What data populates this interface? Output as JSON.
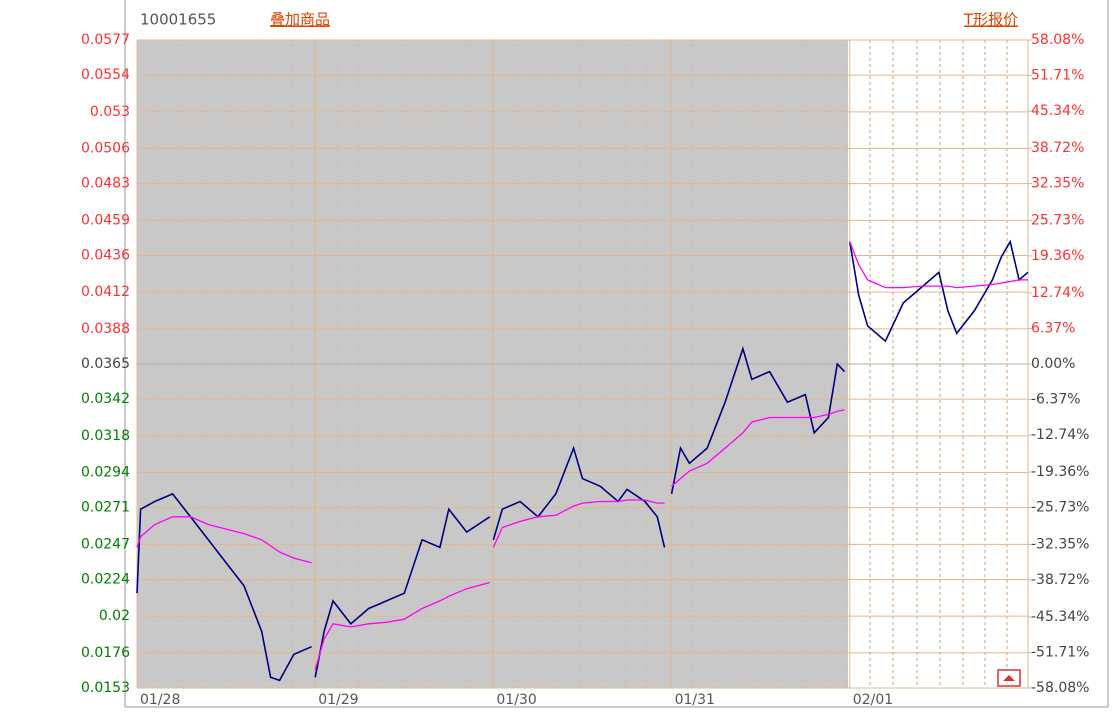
{
  "chart_data": {
    "type": "line",
    "code": "10001655",
    "overlay_link": "叠加商品",
    "quote_link": "T形报价",
    "xlim": [
      0,
      5
    ],
    "xticks": [
      {
        "value": 0,
        "label": "01/28"
      },
      {
        "value": 1,
        "label": "01/29"
      },
      {
        "value": 2,
        "label": "01/30"
      },
      {
        "value": 3,
        "label": "01/31"
      },
      {
        "value": 4,
        "label": "02/01"
      }
    ],
    "ylim": [
      0.0153,
      0.0577
    ],
    "yticks": [
      0.0153,
      0.0176,
      0.02,
      0.0224,
      0.0247,
      0.0271,
      0.0294,
      0.0318,
      0.0342,
      0.0365,
      0.0388,
      0.0412,
      0.0436,
      0.0459,
      0.0483,
      0.0506,
      0.053,
      0.0554,
      0.0577
    ],
    "y2lim": [
      -58.08,
      58.08
    ],
    "y2ticks": [
      {
        "value": -58.08,
        "label": "-58.08%"
      },
      {
        "value": -51.71,
        "label": "-51.71%"
      },
      {
        "value": -45.34,
        "label": "-45.34%"
      },
      {
        "value": -38.72,
        "label": "-38.72%"
      },
      {
        "value": -32.35,
        "label": "-32.35%"
      },
      {
        "value": -25.73,
        "label": "-25.73%"
      },
      {
        "value": -19.36,
        "label": "-19.36%"
      },
      {
        "value": -12.74,
        "label": "-12.74%"
      },
      {
        "value": -6.37,
        "label": "-6.37%"
      },
      {
        "value": 0,
        "label": "0.00%"
      },
      {
        "value": 6.37,
        "label": "6.37%"
      },
      {
        "value": 12.74,
        "label": "12.74%"
      },
      {
        "value": 19.36,
        "label": "19.36%"
      },
      {
        "value": 25.73,
        "label": "25.73%"
      },
      {
        "value": 32.35,
        "label": "32.35%"
      },
      {
        "value": 38.72,
        "label": "38.72%"
      },
      {
        "value": 45.34,
        "label": "45.34%"
      },
      {
        "value": 51.71,
        "label": "51.71%"
      },
      {
        "value": 58.08,
        "label": "58.08%"
      }
    ],
    "grid": true,
    "x": [
      0,
      0.02,
      0.1,
      0.2,
      0.3,
      0.4,
      0.5,
      0.6,
      0.7,
      0.75,
      0.8,
      0.88,
      0.98,
      0.99,
      1.0,
      1.05,
      1.1,
      1.2,
      1.3,
      1.4,
      1.5,
      1.6,
      1.7,
      1.75,
      1.85,
      1.98,
      1.99,
      2.0,
      2.05,
      2.15,
      2.25,
      2.35,
      2.45,
      2.5,
      2.6,
      2.7,
      2.75,
      2.85,
      2.92,
      2.96,
      2.98,
      3.0,
      3.05,
      3.1,
      3.2,
      3.3,
      3.4,
      3.45,
      3.55,
      3.65,
      3.75,
      3.8,
      3.88,
      3.93,
      3.97,
      3.98,
      4.0,
      4.05,
      4.1,
      4.2,
      4.3,
      4.4,
      4.5,
      4.55,
      4.6,
      4.7,
      4.8,
      4.85,
      4.9,
      4.95,
      5.0
    ],
    "series": [
      {
        "color": "#000080",
        "values": [
          0.0215,
          0.027,
          0.0275,
          0.028,
          0.0265,
          0.025,
          0.0235,
          0.022,
          0.019,
          0.016,
          0.0158,
          0.0175,
          0.018,
          null,
          0.016,
          0.019,
          0.021,
          0.0195,
          0.0205,
          0.021,
          0.0215,
          0.025,
          0.0245,
          0.027,
          0.0255,
          0.0265,
          null,
          0.025,
          0.027,
          0.0275,
          0.0265,
          0.028,
          0.031,
          0.029,
          0.0285,
          0.0275,
          0.0283,
          0.0275,
          0.0265,
          0.0245,
          null,
          0.028,
          0.031,
          0.03,
          0.031,
          0.034,
          0.0375,
          0.0355,
          0.036,
          0.034,
          0.0345,
          0.032,
          0.033,
          0.0365,
          0.036,
          null,
          0.0445,
          0.041,
          0.039,
          0.038,
          0.0405,
          0.0415,
          0.0425,
          0.04,
          0.0385,
          0.04,
          0.042,
          0.0435,
          0.0445,
          0.042,
          0.0425
        ]
      },
      {
        "color": "#ff00ff",
        "values": [
          0.0245,
          0.0252,
          0.026,
          0.0265,
          0.0265,
          0.026,
          0.0257,
          0.0254,
          0.025,
          0.0246,
          0.0242,
          0.0238,
          0.0235,
          null,
          0.0165,
          0.0185,
          0.0195,
          0.0193,
          0.0195,
          0.0196,
          0.0198,
          0.0205,
          0.021,
          0.0213,
          0.0218,
          0.0222,
          null,
          0.0245,
          0.0258,
          0.0262,
          0.0265,
          0.0266,
          0.0272,
          0.0274,
          0.0275,
          0.0275,
          0.0276,
          0.0276,
          0.0274,
          0.0274,
          null,
          0.0285,
          0.029,
          0.0295,
          0.03,
          0.031,
          0.032,
          0.0327,
          0.033,
          0.033,
          0.033,
          0.033,
          0.0332,
          0.0334,
          0.0335,
          null,
          0.0445,
          0.043,
          0.042,
          0.0415,
          0.0415,
          0.0416,
          0.0416,
          0.0416,
          0.0415,
          0.0416,
          0.0417,
          0.0418,
          0.0419,
          0.042,
          0.042
        ]
      }
    ]
  }
}
